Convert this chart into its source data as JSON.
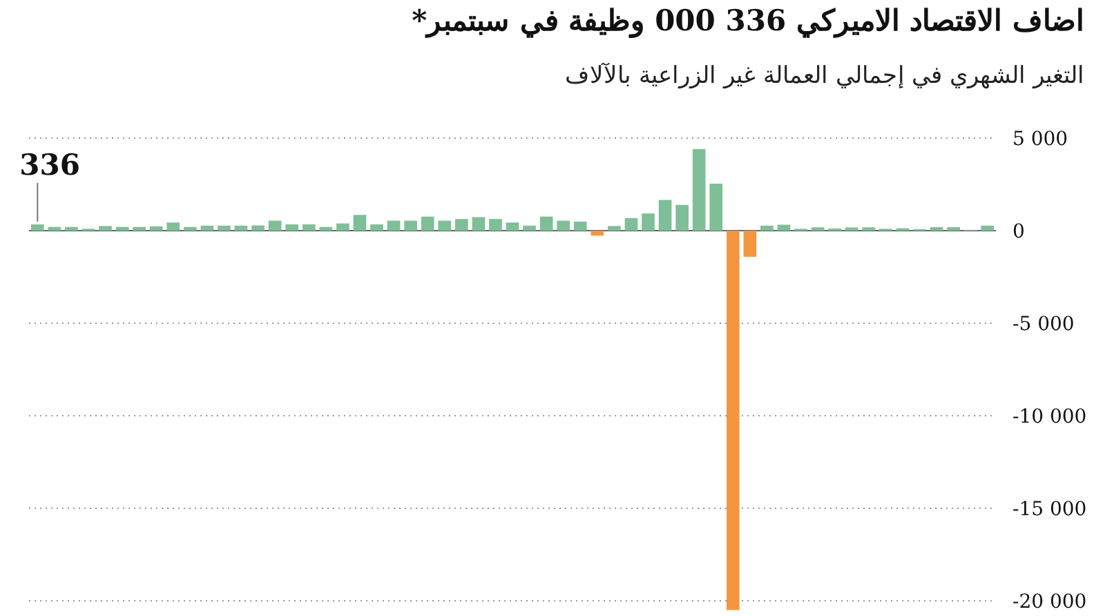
{
  "chart_data": {
    "type": "bar",
    "title": "اضاف الاقتصاد الاميركي  336 000 وظيفة في سبتمبر*",
    "subtitle": "التغير الشهري في إجمالي العمالة غير الزراعية بالآلاف",
    "categories": [
      null,
      null,
      null,
      null,
      null,
      null,
      null,
      null,
      null,
      null,
      null,
      null,
      null,
      null,
      null,
      null,
      null,
      null,
      null,
      null,
      null,
      null,
      null,
      null,
      null,
      null,
      null,
      null,
      null,
      null,
      null,
      null,
      null,
      null,
      null,
      null,
      null,
      null,
      null,
      null,
      null,
      null,
      null,
      null,
      null,
      null,
      null,
      null,
      null,
      null,
      null,
      null,
      null,
      null,
      null,
      null,
      null
    ],
    "values": [
      336,
      200,
      200,
      100,
      250,
      200,
      200,
      230,
      440,
      200,
      270,
      270,
      270,
      280,
      540,
      340,
      340,
      200,
      390,
      850,
      340,
      540,
      540,
      760,
      540,
      630,
      730,
      630,
      440,
      270,
      760,
      540,
      490,
      -270,
      250,
      680,
      930,
      1660,
      1390,
      4410,
      2540,
      -20500,
      -1410,
      270,
      320,
      100,
      180,
      120,
      170,
      180,
      100,
      130,
      80,
      190,
      190,
      40,
      270
    ],
    "colors": [
      "#7fbf98",
      "#7fbf98",
      "#7fbf98",
      "#7fbf98",
      "#7fbf98",
      "#7fbf98",
      "#7fbf98",
      "#7fbf98",
      "#7fbf98",
      "#7fbf98",
      "#7fbf98",
      "#7fbf98",
      "#7fbf98",
      "#7fbf98",
      "#7fbf98",
      "#7fbf98",
      "#7fbf98",
      "#7fbf98",
      "#7fbf98",
      "#7fbf98",
      "#7fbf98",
      "#7fbf98",
      "#7fbf98",
      "#7fbf98",
      "#7fbf98",
      "#7fbf98",
      "#7fbf98",
      "#7fbf98",
      "#7fbf98",
      "#7fbf98",
      "#7fbf98",
      "#7fbf98",
      "#7fbf98",
      "#f4963f",
      "#7fbf98",
      "#7fbf98",
      "#7fbf98",
      "#7fbf98",
      "#7fbf98",
      "#7fbf98",
      "#7fbf98",
      "#f4963f",
      "#f4963f",
      "#7fbf98",
      "#7fbf98",
      "#7fbf98",
      "#7fbf98",
      "#7fbf98",
      "#7fbf98",
      "#7fbf98",
      "#7fbf98",
      "#7fbf98",
      "#7fbf98",
      "#7fbf98",
      "#7fbf98",
      "#7fbf98",
      "#7fbf98"
    ],
    "value_labels": [
      "336",
      null,
      null,
      null,
      null,
      null,
      null,
      null,
      null,
      null,
      null,
      null,
      null,
      null,
      null,
      null,
      null,
      null,
      null,
      null,
      null,
      null,
      null,
      null,
      null,
      null,
      null,
      null,
      null,
      null,
      null,
      null,
      null,
      null,
      null,
      null,
      null,
      null,
      null,
      null,
      null,
      null,
      null,
      null,
      null,
      null,
      null,
      null,
      null,
      null,
      null,
      null,
      null,
      null,
      null,
      null,
      null
    ],
    "ylim": [
      -20600,
      5000
    ],
    "yticks": [
      {
        "value": 5000,
        "label": "5 000"
      },
      0,
      {
        "value": -5000,
        "label": "-5 000"
      },
      {
        "value": -10000,
        "label": "-10 000"
      },
      {
        "value": -15000,
        "label": "-15 000"
      },
      {
        "value": -20000,
        "label": "-20 000"
      }
    ],
    "grid": "y"
  }
}
